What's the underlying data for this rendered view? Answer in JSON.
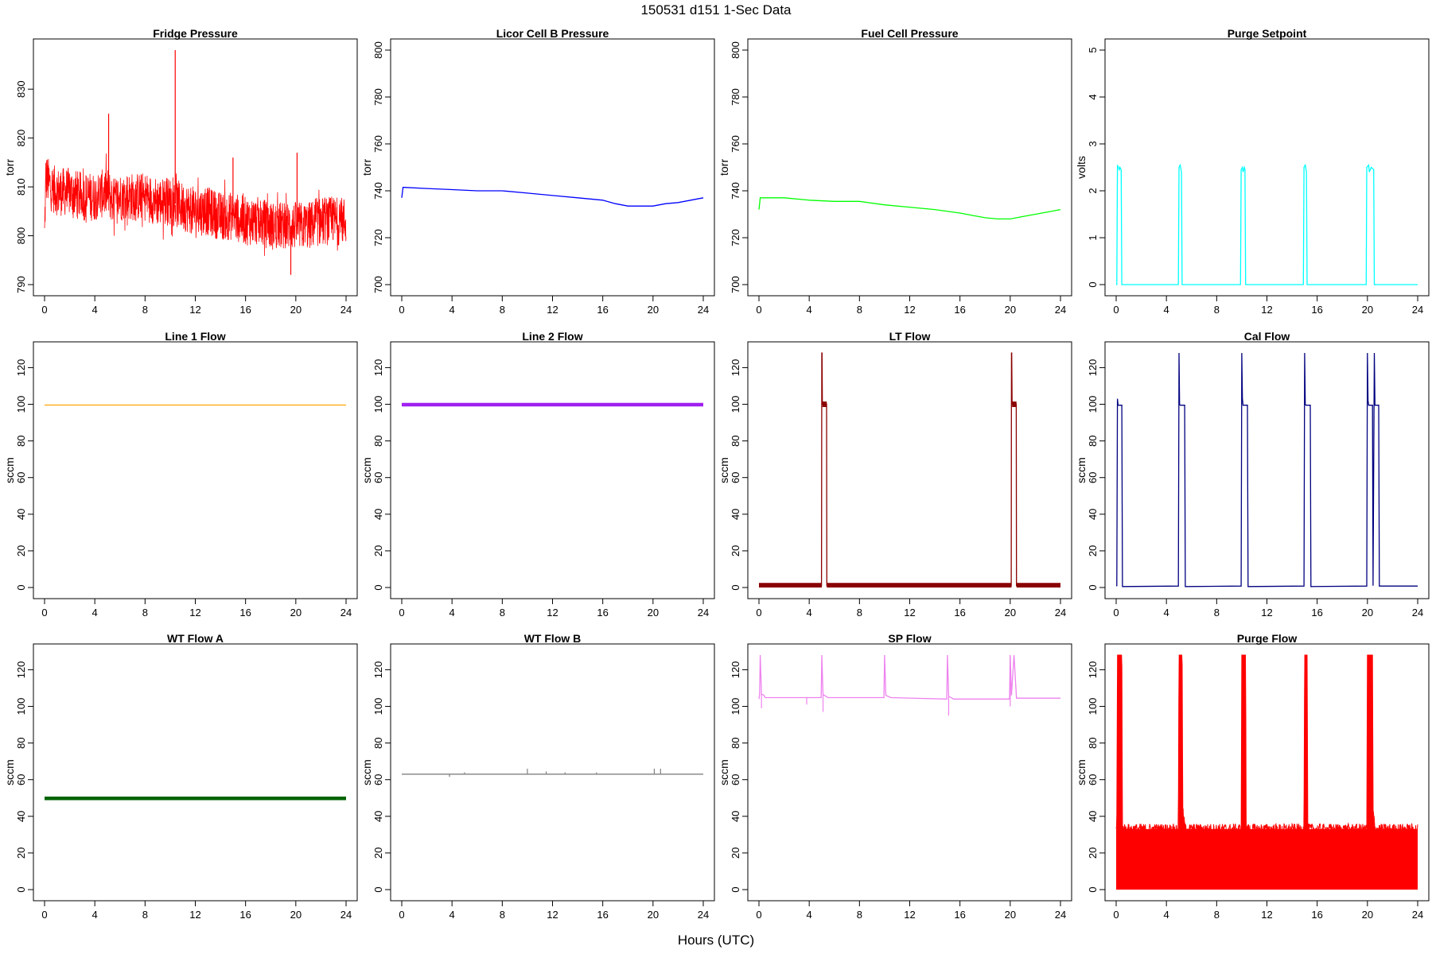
{
  "figure": {
    "title": "150531   d151   1-Sec Data",
    "xlabel": "Hours (UTC)"
  },
  "chart_data": [
    {
      "type": "line",
      "title": "Fridge Pressure",
      "ylabel": "torr",
      "color": "#ff0000",
      "xlim": [
        0,
        24
      ],
      "ylim": [
        790,
        838
      ],
      "xticks": [
        0,
        4,
        8,
        12,
        16,
        20,
        24
      ],
      "yticks": [
        790,
        800,
        810,
        820,
        830
      ],
      "style": "noisy",
      "series": [
        {
          "x": [
            0,
            0.1,
            0.5,
            1,
            2,
            3,
            4,
            5,
            5.5,
            6,
            7,
            8,
            9,
            10,
            11,
            12,
            13,
            14,
            15,
            16,
            17,
            18,
            19,
            20,
            21,
            22,
            23,
            24
          ],
          "y": [
            800,
            812,
            810,
            809,
            809,
            808,
            808,
            809,
            807,
            808,
            808,
            808,
            807,
            807,
            806,
            805,
            805,
            804,
            804,
            803,
            803,
            802,
            802,
            802,
            802,
            803,
            803,
            803
          ],
          "band": 5
        }
      ],
      "spikes": [
        [
          5.1,
          825
        ],
        [
          10.4,
          838
        ],
        [
          15.0,
          816
        ],
        [
          20.1,
          817
        ],
        [
          19.6,
          792
        ]
      ]
    },
    {
      "type": "line",
      "title": "Licor Cell B Pressure",
      "ylabel": "torr",
      "color": "#0000ff",
      "xlim": [
        0,
        24
      ],
      "ylim": [
        700,
        800
      ],
      "xticks": [
        0,
        4,
        8,
        12,
        16,
        20,
        24
      ],
      "yticks": [
        700,
        720,
        740,
        760,
        780,
        800
      ],
      "style": "line",
      "series": [
        {
          "x": [
            0,
            0.1,
            2,
            4,
            6,
            8,
            10,
            12,
            14,
            16,
            17,
            18,
            19,
            20,
            21,
            22,
            23,
            24
          ],
          "y": [
            737,
            741.5,
            741,
            740.5,
            740,
            740,
            739,
            738,
            737,
            736,
            734.5,
            733.5,
            733.5,
            733.5,
            734.5,
            735,
            736,
            737
          ]
        }
      ]
    },
    {
      "type": "line",
      "title": "Fuel Cell Pressure",
      "ylabel": "torr",
      "color": "#00ff00",
      "xlim": [
        0,
        24
      ],
      "ylim": [
        700,
        800
      ],
      "xticks": [
        0,
        4,
        8,
        12,
        16,
        20,
        24
      ],
      "yticks": [
        700,
        720,
        740,
        760,
        780,
        800
      ],
      "style": "line",
      "series": [
        {
          "x": [
            0,
            0.1,
            2,
            4,
            6,
            8,
            10,
            12,
            14,
            16,
            17,
            18,
            19,
            20,
            21,
            22,
            23,
            24
          ],
          "y": [
            732,
            737,
            737,
            736,
            735.5,
            735.5,
            734,
            733,
            732,
            730.5,
            729.5,
            728.5,
            728,
            728,
            729,
            730,
            731,
            732
          ]
        }
      ]
    },
    {
      "type": "line",
      "title": "Purge Setpoint",
      "ylabel": "volts",
      "color": "#00ffff",
      "xlim": [
        0,
        24
      ],
      "ylim": [
        0,
        5
      ],
      "xticks": [
        0,
        4,
        8,
        12,
        16,
        20,
        24
      ],
      "yticks": [
        0,
        1,
        2,
        3,
        4,
        5
      ],
      "style": "line",
      "series": [
        {
          "x": [
            0,
            0.05,
            0.1,
            0.25,
            0.3,
            0.4,
            0.45,
            4.95,
            5.0,
            5.1,
            5.2,
            5.25,
            9.9,
            9.95,
            10.05,
            10.1,
            10.2,
            10.25,
            10.3,
            14.9,
            14.95,
            15.05,
            15.15,
            15.2,
            19.9,
            19.95,
            20.1,
            20.15,
            20.3,
            20.5,
            20.55,
            24
          ],
          "y": [
            0,
            0,
            2.55,
            2.45,
            2.5,
            2.45,
            0,
            0,
            2.5,
            2.55,
            2.4,
            0,
            0,
            2.45,
            2.5,
            2.4,
            2.5,
            2.45,
            0,
            0,
            2.5,
            2.55,
            2.4,
            0,
            0,
            2.5,
            2.55,
            2.4,
            2.5,
            2.45,
            0,
            0
          ]
        }
      ]
    },
    {
      "type": "line",
      "title": "Line 1 Flow",
      "ylabel": "sccm",
      "color": "#ffa500",
      "xlim": [
        0,
        24
      ],
      "ylim": [
        0,
        128
      ],
      "xticks": [
        0,
        4,
        8,
        12,
        16,
        20,
        24
      ],
      "yticks": [
        0,
        20,
        40,
        60,
        80,
        100,
        120
      ],
      "style": "line",
      "series": [
        {
          "x": [
            0,
            24
          ],
          "y": [
            99.6,
            99.6
          ]
        }
      ]
    },
    {
      "type": "line",
      "title": "Line 2 Flow",
      "ylabel": "sccm",
      "color": "#a020f0",
      "xlim": [
        0,
        24
      ],
      "ylim": [
        0,
        128
      ],
      "xticks": [
        0,
        4,
        8,
        12,
        16,
        20,
        24
      ],
      "yticks": [
        0,
        20,
        40,
        60,
        80,
        100,
        120
      ],
      "style": "thick",
      "series": [
        {
          "x": [
            0,
            24
          ],
          "y": [
            99.8,
            99.8
          ]
        }
      ]
    },
    {
      "type": "line",
      "title": "LT Flow",
      "ylabel": "sccm",
      "color": "#8b0000",
      "xlim": [
        0,
        24
      ],
      "ylim": [
        0,
        128
      ],
      "xticks": [
        0,
        4,
        8,
        12,
        16,
        20,
        24
      ],
      "yticks": [
        0,
        20,
        40,
        60,
        80,
        100,
        120
      ],
      "style": "line",
      "bands": [
        [
          0,
          5.0,
          0,
          2.5
        ],
        [
          5.4,
          20.1,
          0,
          2.5
        ],
        [
          20.5,
          24,
          0,
          2.5
        ],
        [
          5.05,
          5.4,
          98.5,
          101.5
        ],
        [
          20.15,
          20.5,
          98.5,
          101.5
        ]
      ],
      "series": [
        {
          "x": [
            0,
            4.98,
            5.0,
            5.02,
            5.05,
            5.38,
            5.4,
            20.08,
            20.1,
            20.12,
            20.15,
            20.48,
            20.5,
            24
          ],
          "y": [
            1,
            1,
            128,
            128,
            100,
            100,
            1,
            1,
            128,
            128,
            100,
            100,
            1,
            1
          ]
        }
      ]
    },
    {
      "type": "line",
      "title": "Cal Flow",
      "ylabel": "sccm",
      "color": "#000080",
      "xlim": [
        0,
        24
      ],
      "ylim": [
        0,
        128
      ],
      "xticks": [
        0,
        4,
        8,
        12,
        16,
        20,
        24
      ],
      "yticks": [
        0,
        20,
        40,
        60,
        80,
        100,
        120
      ],
      "style": "line",
      "series": [
        {
          "x": [
            0,
            0.05,
            0.1,
            0.15,
            0.45,
            0.5,
            4.95,
            5.0,
            5.05,
            5.1,
            5.45,
            5.5,
            9.95,
            10.0,
            10.05,
            10.1,
            10.45,
            10.5,
            14.95,
            15.0,
            15.05,
            15.1,
            15.45,
            15.5,
            19.95,
            20.0,
            20.05,
            20.1,
            20.4,
            20.45,
            20.55,
            20.6,
            20.9,
            20.95,
            24
          ],
          "y": [
            1,
            1,
            103,
            99.5,
            99.5,
            0.5,
            0.8,
            128,
            100,
            99.5,
            99.5,
            0.5,
            0.8,
            128,
            103,
            99.5,
            99.5,
            0.5,
            0.8,
            128,
            100,
            99.5,
            99.5,
            0.5,
            0.8,
            128,
            102,
            99.5,
            99.5,
            1,
            128,
            99.5,
            99.5,
            0.8,
            0.8
          ]
        }
      ]
    },
    {
      "type": "line",
      "title": "WT Flow A",
      "ylabel": "sccm",
      "color": "#006400",
      "xlim": [
        0,
        24
      ],
      "ylim": [
        0,
        128
      ],
      "xticks": [
        0,
        4,
        8,
        12,
        16,
        20,
        24
      ],
      "yticks": [
        0,
        20,
        40,
        60,
        80,
        100,
        120
      ],
      "style": "thick",
      "series": [
        {
          "x": [
            0,
            24
          ],
          "y": [
            49.8,
            49.8
          ]
        }
      ]
    },
    {
      "type": "line",
      "title": "WT Flow B",
      "ylabel": "sccm",
      "color": "#808080",
      "xlim": [
        0,
        24
      ],
      "ylim": [
        0,
        128
      ],
      "xticks": [
        0,
        4,
        8,
        12,
        16,
        20,
        24
      ],
      "yticks": [
        0,
        20,
        40,
        60,
        80,
        100,
        120
      ],
      "style": "line",
      "series": [
        {
          "x": [
            0,
            24
          ],
          "y": [
            63,
            63
          ]
        }
      ],
      "spikes": [
        [
          3.8,
          61.5
        ],
        [
          5.0,
          64
        ],
        [
          10.0,
          66
        ],
        [
          11.5,
          64.5
        ],
        [
          13.0,
          64
        ],
        [
          15.5,
          64
        ],
        [
          20.1,
          66
        ],
        [
          20.6,
          66
        ]
      ]
    },
    {
      "type": "line",
      "title": "SP Flow",
      "ylabel": "sccm",
      "color": "#ee82ee",
      "xlim": [
        0,
        24
      ],
      "ylim": [
        0,
        128
      ],
      "xticks": [
        0,
        4,
        8,
        12,
        16,
        20,
        24
      ],
      "yticks": [
        0,
        20,
        40,
        60,
        80,
        100,
        120
      ],
      "style": "line",
      "series": [
        {
          "x": [
            0,
            0.05,
            0.1,
            0.2,
            0.3,
            0.4,
            0.5,
            4.95,
            5.0,
            5.1,
            5.5,
            9.95,
            10.0,
            10.1,
            10.5,
            14.95,
            15.0,
            15.1,
            15.5,
            19.95,
            20.0,
            20.1,
            20.3,
            20.5,
            24
          ],
          "y": [
            104,
            106.5,
            128,
            106.5,
            106.5,
            106,
            104.8,
            104.8,
            128,
            106.5,
            104.8,
            104.8,
            128,
            106,
            104.8,
            104,
            128,
            105.5,
            104,
            104,
            128,
            106,
            128,
            104.5,
            104.5
          ]
        }
      ],
      "spikes": [
        [
          0.2,
          99
        ],
        [
          3.8,
          101
        ],
        [
          5.1,
          97
        ],
        [
          15.1,
          95
        ],
        [
          20.0,
          100
        ]
      ]
    },
    {
      "type": "line",
      "title": "Purge Flow",
      "ylabel": "sccm",
      "color": "#ff0000",
      "xlim": [
        0,
        24
      ],
      "ylim": [
        0,
        128
      ],
      "xticks": [
        0,
        4,
        8,
        12,
        16,
        20,
        24
      ],
      "yticks": [
        0,
        20,
        40,
        60,
        80,
        100,
        120
      ],
      "style": "fill",
      "series": [
        {
          "x": [
            0,
            0.05,
            0.1,
            0.45,
            0.5,
            4.95,
            5.0,
            5.25,
            5.3,
            5.5,
            9.95,
            10.0,
            10.3,
            10.35,
            14.95,
            15.0,
            15.2,
            15.25,
            19.95,
            20.0,
            20.4,
            20.45,
            20.6,
            24
          ],
          "y": [
            33,
            33,
            128,
            128,
            33,
            33,
            128,
            128,
            43,
            33,
            33,
            128,
            128,
            33,
            33,
            128,
            128,
            33,
            33,
            128,
            128,
            43,
            33,
            33
          ]
        }
      ]
    }
  ]
}
